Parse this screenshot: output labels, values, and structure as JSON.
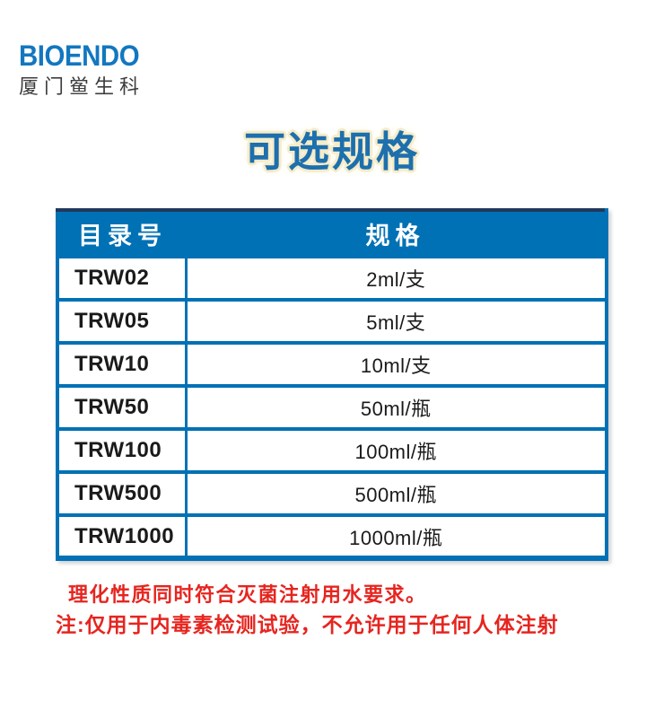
{
  "logo": {
    "brand": "BIOENDO",
    "subtitle": "厦门鲎生科"
  },
  "title": "可选规格",
  "table": {
    "headers": [
      "目录号",
      "规格"
    ],
    "rows": [
      {
        "catalog": "TRW02",
        "spec": "2ml/支"
      },
      {
        "catalog": "TRW05",
        "spec": "5ml/支"
      },
      {
        "catalog": "TRW10",
        "spec": "10ml/支"
      },
      {
        "catalog": "TRW50",
        "spec": "50ml/瓶"
      },
      {
        "catalog": "TRW100",
        "spec": "100ml/瓶"
      },
      {
        "catalog": "TRW500",
        "spec": "500ml/瓶"
      },
      {
        "catalog": "TRW1000",
        "spec": "1000ml/瓶"
      }
    ]
  },
  "notes": {
    "line1": "理化性质同时符合灭菌注射用水要求。",
    "line2": "注:仅用于内毒素检测试验，不允许用于任何人体注射"
  },
  "colors": {
    "table_blue": "#0071b5",
    "title_blue": "#1d6fad",
    "logo_blue": "#1377c0",
    "note_red": "#e6251f",
    "header_top_dark": "#20395c",
    "title_glow": "#f5ecca"
  }
}
